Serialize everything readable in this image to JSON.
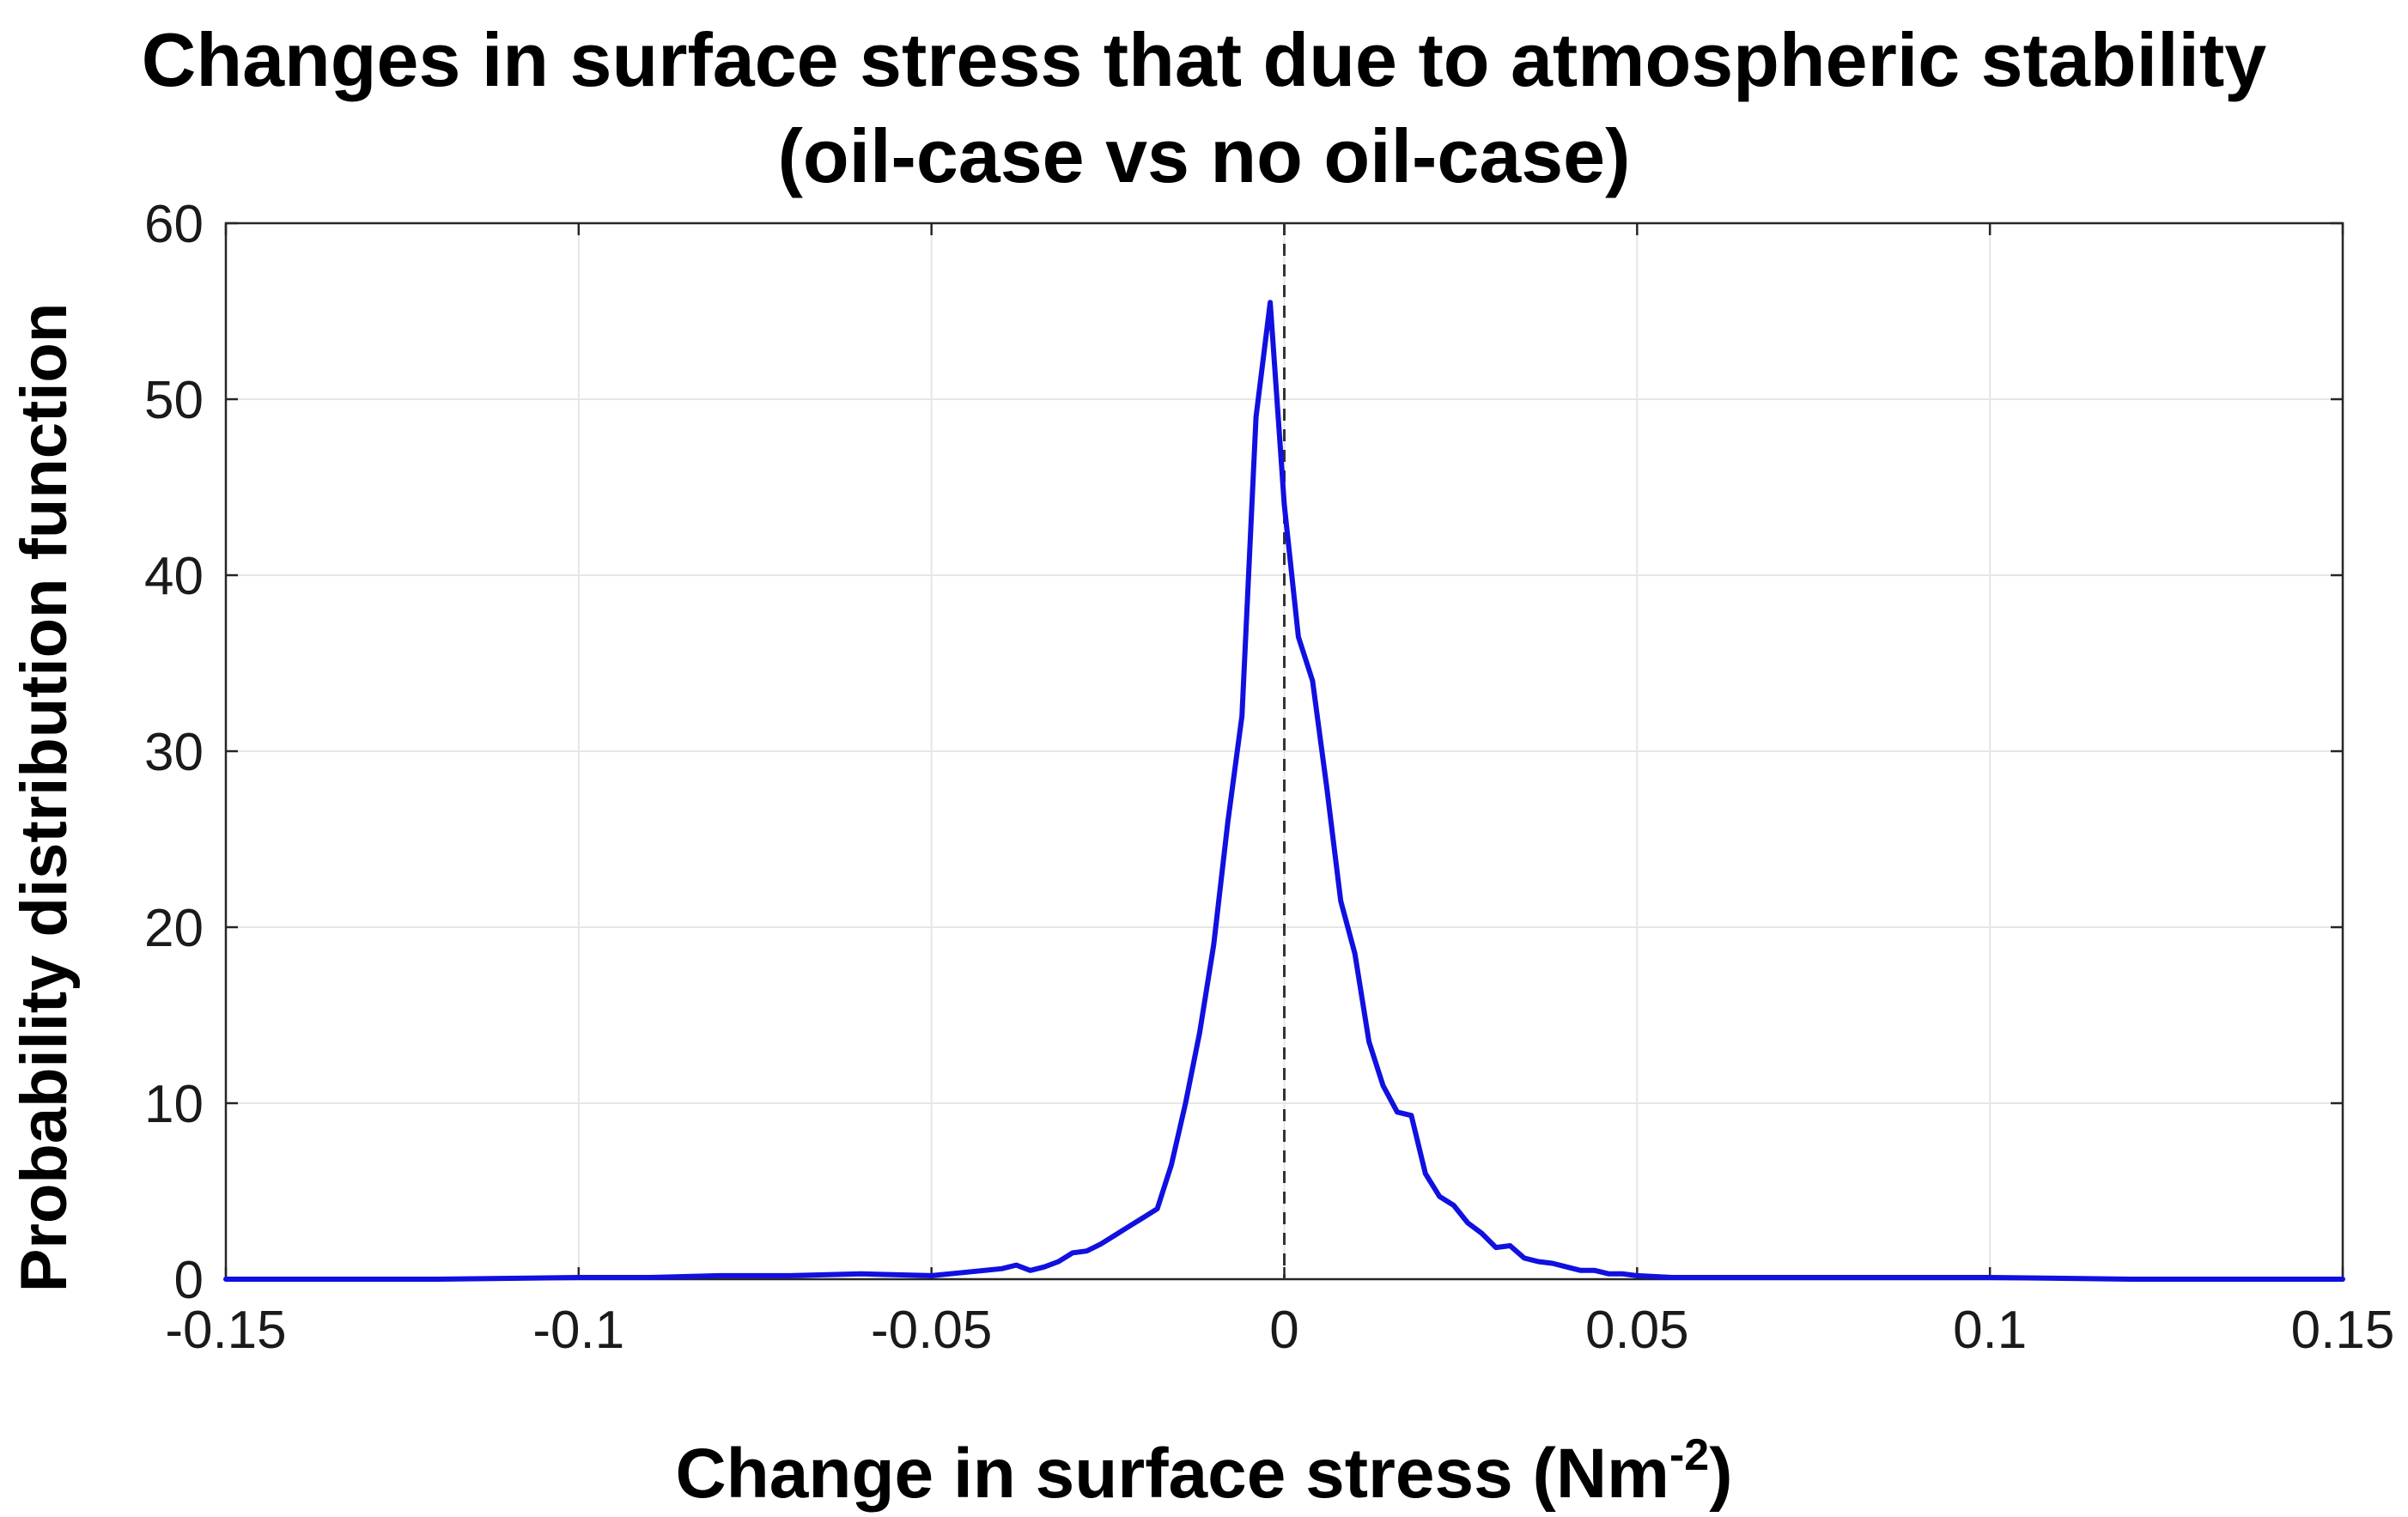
{
  "chart_data": {
    "type": "line",
    "title": [
      "Changes in surface stress that due to atmospheric stability",
      "(oil-case vs no oil-case)"
    ],
    "xlabel": "Change in surface stress (Nm",
    "xlabel_superscript": "-2",
    "xlabel_suffix": ")",
    "ylabel": "Probability distribution function",
    "xlim": [
      -0.15,
      0.15
    ],
    "ylim": [
      0,
      60
    ],
    "xticks": [
      -0.15,
      -0.1,
      -0.05,
      0,
      0.05,
      0.1,
      0.15
    ],
    "xtick_labels": [
      "-0.15",
      "-0.1",
      "-0.05",
      "0",
      "0.05",
      "0.1",
      "0.15"
    ],
    "yticks": [
      0,
      10,
      20,
      30,
      40,
      50,
      60
    ],
    "ytick_labels": [
      "0",
      "10",
      "20",
      "30",
      "40",
      "50",
      "60"
    ],
    "grid": true,
    "series_color": "#1010e0",
    "reference_line": {
      "x": 0,
      "style": "dashed",
      "color": "#333333"
    },
    "series": [
      {
        "x": [
          -0.15,
          -0.12,
          -0.1,
          -0.09,
          -0.08,
          -0.07,
          -0.06,
          -0.05,
          -0.045,
          -0.04,
          -0.038,
          -0.036,
          -0.034,
          -0.032,
          -0.03,
          -0.028,
          -0.026,
          -0.024,
          -0.022,
          -0.02,
          -0.018,
          -0.016,
          -0.014,
          -0.012,
          -0.01,
          -0.008,
          -0.006,
          -0.004,
          -0.002,
          0,
          0.002,
          0.004,
          0.006,
          0.008,
          0.01,
          0.012,
          0.014,
          0.016,
          0.018,
          0.02,
          0.022,
          0.024,
          0.026,
          0.028,
          0.03,
          0.032,
          0.034,
          0.036,
          0.038,
          0.04,
          0.042,
          0.044,
          0.046,
          0.048,
          0.05,
          0.055,
          0.06,
          0.07,
          0.08,
          0.09,
          0.1,
          0.12,
          0.15
        ],
        "y": [
          0,
          0,
          0.1,
          0.1,
          0.2,
          0.2,
          0.3,
          0.2,
          0.4,
          0.6,
          0.8,
          0.5,
          0.7,
          1.0,
          1.5,
          1.6,
          2.0,
          2.5,
          3.0,
          3.5,
          4.0,
          6.5,
          10,
          14,
          19,
          26,
          32,
          49,
          55.5,
          44,
          36.5,
          34,
          28,
          21.5,
          18.5,
          13.5,
          11,
          9.5,
          9.3,
          6,
          4.7,
          4.2,
          3.2,
          2.6,
          1.8,
          1.9,
          1.2,
          1.0,
          0.9,
          0.7,
          0.5,
          0.5,
          0.3,
          0.3,
          0.2,
          0.1,
          0.1,
          0.1,
          0.1,
          0.1,
          0.1,
          0,
          0
        ]
      }
    ]
  }
}
